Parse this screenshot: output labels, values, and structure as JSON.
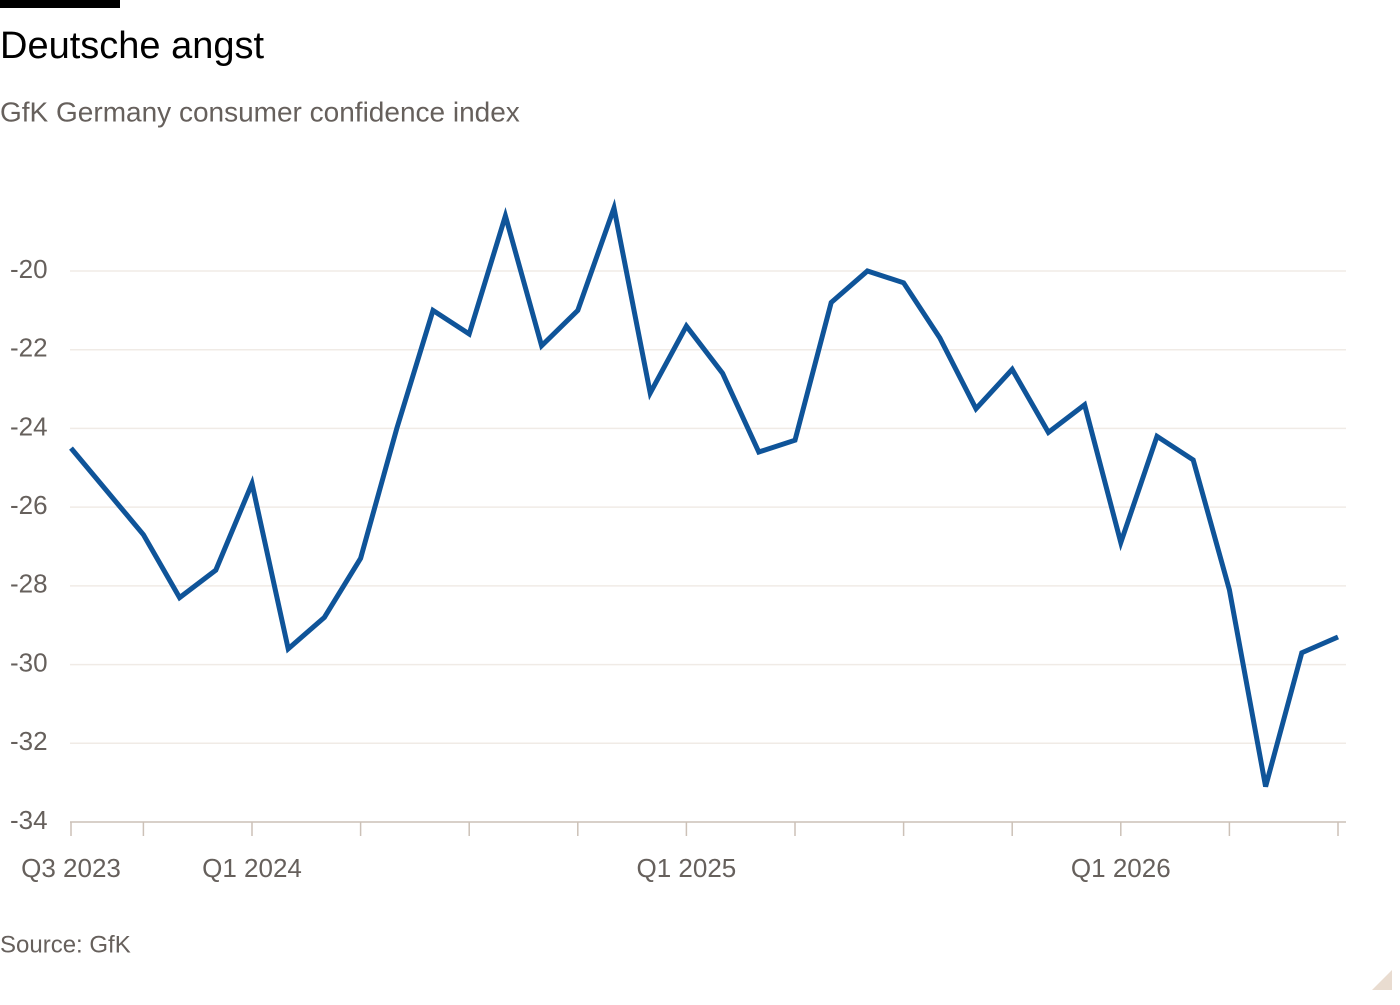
{
  "chart_data": {
    "type": "line",
    "title": "Deutsche angst",
    "subtitle": "GfK Germany consumer confidence index",
    "source": "Source: GfK",
    "categories": [
      "Q3 2023",
      null,
      null,
      null,
      null,
      "Q1 2024",
      null,
      null,
      null,
      null,
      null,
      null,
      null,
      null,
      null,
      null,
      null,
      "Q1 2025",
      null,
      null,
      null,
      null,
      null,
      null,
      null,
      null,
      null,
      null,
      null,
      "Q1 2026",
      null,
      null,
      null,
      null,
      null,
      null
    ],
    "series": [
      {
        "name": "GfK consumer confidence",
        "color": "#0f5499",
        "values": [
          -24.5,
          -25.6,
          -26.7,
          -28.3,
          -27.6,
          -25.4,
          -29.6,
          -28.8,
          -27.3,
          -24.0,
          -21.0,
          -21.6,
          -18.6,
          -21.9,
          -21.0,
          -18.4,
          -23.1,
          -21.4,
          -22.6,
          -24.6,
          -24.3,
          -20.8,
          -20.0,
          -20.3,
          -21.7,
          -23.5,
          -22.5,
          -24.1,
          -23.4,
          -26.9,
          -24.2,
          -24.8,
          -28.1,
          -33.1,
          -29.7,
          -29.3
        ]
      }
    ],
    "ylim": [
      -34,
      -17.5
    ],
    "yticks": [
      -34,
      -32,
      -30,
      -28,
      -26,
      -24,
      -22,
      -20
    ],
    "grid": true
  }
}
